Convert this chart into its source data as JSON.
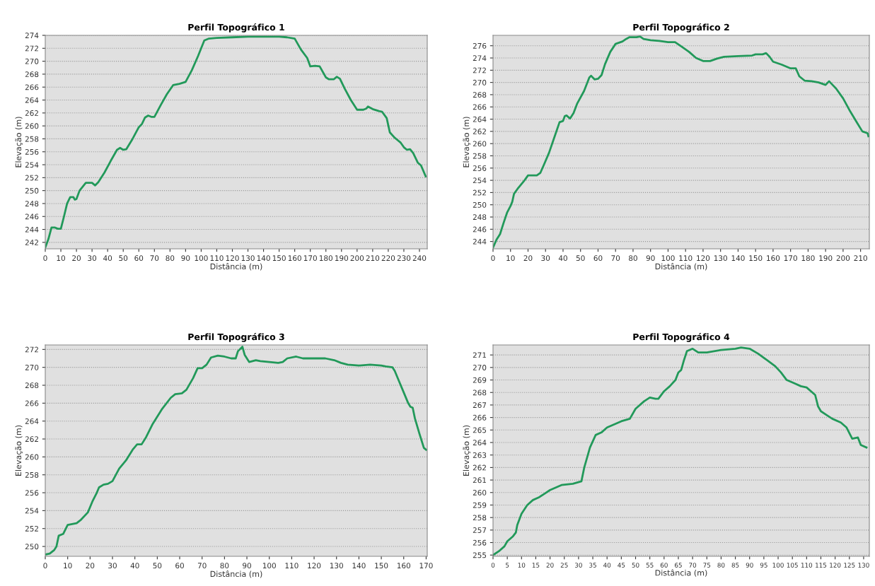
{
  "chart_data": [
    {
      "type": "line",
      "title": "Perfil Topográfico 1",
      "xlabel": "Distância (m)",
      "ylabel": "Elevação (m)",
      "grid": "y",
      "color": "#22995a",
      "x": [
        0,
        2,
        4,
        6,
        8,
        10,
        12,
        14,
        16,
        18,
        19,
        20,
        22,
        24,
        26,
        28,
        30,
        32,
        34,
        38,
        42,
        46,
        48,
        50,
        52,
        56,
        60,
        62,
        64,
        66,
        68,
        70,
        74,
        78,
        82,
        86,
        90,
        94,
        98,
        102,
        105,
        110,
        120,
        130,
        140,
        150,
        155,
        160,
        164,
        168,
        170,
        173,
        176,
        180,
        182,
        185,
        187,
        189,
        192,
        196,
        200,
        204,
        206,
        207,
        210,
        214,
        216,
        219,
        221,
        224,
        226,
        228,
        230,
        232,
        234,
        236,
        239,
        241,
        244
      ],
      "values": [
        241.2,
        242.5,
        244.3,
        244.3,
        244.1,
        244.1,
        246,
        248,
        249,
        249,
        248.6,
        248.7,
        250,
        250.6,
        251.2,
        251.2,
        251.2,
        250.8,
        251.3,
        252.8,
        254.6,
        256.3,
        256.6,
        256.3,
        256.4,
        258,
        259.8,
        260.3,
        261.3,
        261.6,
        261.4,
        261.4,
        263.2,
        264.9,
        266.3,
        266.5,
        266.8,
        268.6,
        270.8,
        273.2,
        273.5,
        273.6,
        273.7,
        273.8,
        273.8,
        273.8,
        273.7,
        273.5,
        271.8,
        270.5,
        269.2,
        269.3,
        269.2,
        267.5,
        267.2,
        267.2,
        267.6,
        267.3,
        265.8,
        264,
        262.5,
        262.5,
        262.7,
        263,
        262.6,
        262.3,
        262.2,
        261.2,
        259,
        258.2,
        257.8,
        257.4,
        256.7,
        256.3,
        256.4,
        255.8,
        254.3,
        253.9,
        252.2
      ],
      "xlim": [
        0,
        245
      ],
      "ylim": [
        241,
        274
      ],
      "xticks": [
        0,
        10,
        20,
        30,
        40,
        50,
        60,
        70,
        80,
        90,
        100,
        110,
        120,
        130,
        140,
        150,
        160,
        170,
        180,
        190,
        200,
        210,
        220,
        230,
        240
      ],
      "yticks": [
        242,
        244,
        246,
        248,
        250,
        252,
        254,
        256,
        258,
        260,
        262,
        264,
        266,
        268,
        270,
        272,
        274
      ]
    },
    {
      "type": "line",
      "title": "Perfil Topográfico 2",
      "xlabel": "Distância (m)",
      "ylabel": "Elevação (m)",
      "grid": "y",
      "color": "#22995a",
      "x": [
        0,
        2,
        4,
        6,
        8,
        10,
        11,
        12,
        14,
        16,
        18,
        20,
        22,
        25,
        27,
        29,
        32,
        35,
        38,
        40,
        41,
        42,
        44,
        46,
        48,
        52,
        55,
        56,
        58,
        60,
        62,
        64,
        67,
        70,
        74,
        76,
        78,
        82,
        84,
        86,
        90,
        95,
        100,
        104,
        108,
        112,
        116,
        120,
        124,
        128,
        132,
        140,
        148,
        150,
        154,
        156,
        158,
        160,
        165,
        170,
        173,
        175,
        178,
        182,
        186,
        190,
        192,
        194,
        196,
        200,
        204,
        208,
        211,
        214,
        214.5
      ],
      "values": [
        243,
        244.3,
        245.2,
        247,
        248.7,
        249.8,
        250.5,
        251.8,
        252.6,
        253.3,
        254,
        254.8,
        254.8,
        254.8,
        255.2,
        256.5,
        258.5,
        261,
        263.5,
        263.7,
        264.5,
        264.6,
        264.1,
        265,
        266.5,
        268.6,
        270.8,
        271.1,
        270.5,
        270.6,
        271.2,
        273,
        275,
        276.3,
        276.7,
        277.1,
        277.4,
        277.4,
        277.5,
        277.1,
        276.9,
        276.8,
        276.6,
        276.6,
        275.8,
        275,
        274,
        273.5,
        273.5,
        273.9,
        274.2,
        274.3,
        274.4,
        274.6,
        274.6,
        274.8,
        274.2,
        273.4,
        272.9,
        272.3,
        272.3,
        271,
        270.3,
        270.2,
        270,
        269.6,
        270.2,
        269.6,
        269,
        267.4,
        265.3,
        263.4,
        262,
        261.7,
        261.2
      ],
      "xlim": [
        0,
        215
      ],
      "ylim": [
        242.8,
        277.7
      ],
      "xticks": [
        0,
        10,
        20,
        30,
        40,
        50,
        60,
        70,
        80,
        90,
        100,
        110,
        120,
        130,
        140,
        150,
        160,
        170,
        180,
        190,
        200,
        210
      ],
      "yticks": [
        244,
        246,
        248,
        250,
        252,
        254,
        256,
        258,
        260,
        262,
        264,
        266,
        268,
        270,
        272,
        274,
        276
      ]
    },
    {
      "type": "line",
      "title": "Perfil Topográfico 3",
      "xlabel": "Distância (m)",
      "ylabel": "Elevação (m)",
      "grid": "y",
      "color": "#22995a",
      "x": [
        0,
        2,
        4,
        5,
        6,
        8,
        10,
        12,
        14,
        16,
        19,
        21,
        23,
        24,
        26,
        28,
        30,
        33,
        36,
        39,
        41,
        43,
        45,
        48,
        52,
        56,
        58,
        61,
        63,
        66,
        68,
        70,
        72,
        74,
        77,
        80,
        83,
        85,
        86,
        88,
        89,
        91,
        94,
        96,
        100,
        104,
        106,
        108,
        112,
        115,
        122,
        125,
        129,
        132,
        135,
        140,
        145,
        150,
        152,
        155,
        156,
        158,
        160,
        162,
        163,
        164,
        165,
        167,
        169,
        170
      ],
      "values": [
        249.1,
        249.2,
        249.6,
        250,
        251.2,
        251.4,
        252.4,
        252.5,
        252.6,
        253,
        253.8,
        255,
        256,
        256.6,
        256.9,
        257,
        257.3,
        258.7,
        259.6,
        260.8,
        261.4,
        261.4,
        262.2,
        263.7,
        265.3,
        266.6,
        267,
        267.1,
        267.5,
        268.8,
        269.9,
        269.9,
        270.3,
        271.1,
        271.3,
        271.2,
        271,
        271,
        271.8,
        272.3,
        271.4,
        270.6,
        270.8,
        270.7,
        270.6,
        270.5,
        270.6,
        271,
        271.2,
        271,
        271,
        271,
        270.8,
        270.5,
        270.3,
        270.2,
        270.3,
        270.2,
        270.1,
        270,
        269.6,
        268.4,
        267.2,
        266,
        265.6,
        265.5,
        264.3,
        262.6,
        261,
        260.8
      ],
      "xlim": [
        0,
        170.5
      ],
      "ylim": [
        248.9,
        272.5
      ],
      "xticks": [
        0,
        10,
        20,
        30,
        40,
        50,
        60,
        70,
        80,
        90,
        100,
        110,
        120,
        130,
        140,
        150,
        160,
        170
      ],
      "yticks": [
        250,
        252,
        254,
        256,
        258,
        260,
        262,
        264,
        266,
        268,
        270,
        272
      ]
    },
    {
      "type": "line",
      "title": "Perfil Topográfico 4",
      "xlabel": "Distância (m)",
      "ylabel": "Elevação (m)",
      "grid": "y",
      "color": "#22995a",
      "x": [
        0,
        2,
        4,
        5,
        7,
        8,
        8.5,
        10,
        12,
        14,
        16,
        18,
        20,
        22,
        24,
        28,
        31,
        32,
        34,
        36,
        38,
        40,
        42,
        45,
        48,
        50,
        53,
        55,
        57,
        58,
        60,
        62,
        64,
        65,
        66,
        67,
        68,
        70,
        72,
        75,
        80,
        85,
        87,
        90,
        93,
        96,
        99,
        101,
        103,
        106,
        108,
        110,
        113,
        114,
        115,
        117,
        119,
        122,
        124,
        126,
        128,
        129,
        131
      ],
      "values": [
        255,
        255.3,
        255.7,
        256.1,
        256.5,
        256.8,
        257.4,
        258.3,
        259,
        259.4,
        259.6,
        259.9,
        260.2,
        260.4,
        260.6,
        260.7,
        260.9,
        262,
        263.6,
        264.6,
        264.8,
        265.2,
        265.4,
        265.7,
        265.9,
        266.7,
        267.3,
        267.6,
        267.5,
        267.5,
        268.1,
        268.5,
        269,
        269.6,
        269.8,
        270.6,
        271.3,
        271.5,
        271.2,
        271.2,
        271.4,
        271.5,
        271.6,
        271.5,
        271.1,
        270.6,
        270.1,
        269.6,
        269,
        268.7,
        268.5,
        268.4,
        267.8,
        266.9,
        266.5,
        266.2,
        265.9,
        265.6,
        265.2,
        264.3,
        264.4,
        263.8,
        263.6
      ],
      "xlim": [
        0,
        132
      ],
      "ylim": [
        254.9,
        271.8
      ],
      "xticks": [
        0,
        5,
        10,
        15,
        20,
        25,
        30,
        35,
        40,
        45,
        50,
        55,
        60,
        65,
        70,
        75,
        80,
        85,
        90,
        95,
        100,
        105,
        110,
        115,
        120,
        125,
        130
      ],
      "yticks": [
        255,
        256,
        257,
        258,
        259,
        260,
        261,
        262,
        263,
        264,
        265,
        266,
        267,
        268,
        269,
        270,
        271
      ]
    }
  ]
}
